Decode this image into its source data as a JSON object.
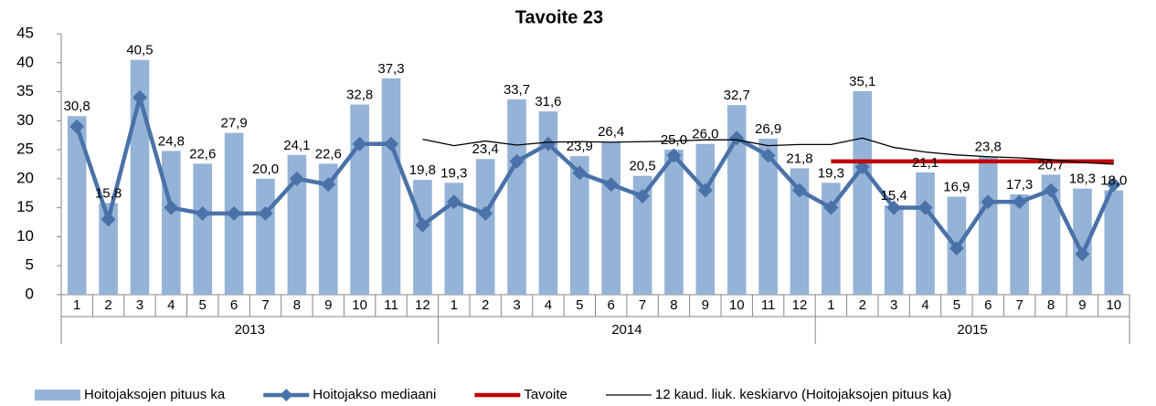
{
  "chart_data": {
    "type": "bar_line",
    "title": "Tavoite 23",
    "categories": [
      "1",
      "2",
      "3",
      "4",
      "5",
      "6",
      "7",
      "8",
      "9",
      "10",
      "11",
      "12",
      "1",
      "2",
      "3",
      "4",
      "5",
      "6",
      "7",
      "8",
      "9",
      "10",
      "11",
      "12",
      "1",
      "2",
      "3",
      "4",
      "5",
      "6",
      "7",
      "8",
      "9",
      "10"
    ],
    "groups": [
      "2013",
      "2014",
      "2015"
    ],
    "ylim": [
      0,
      45
    ],
    "yticks": [
      0,
      5,
      10,
      15,
      20,
      25,
      30,
      35,
      40,
      45
    ],
    "grid": false,
    "legend": "bottom",
    "series": [
      {
        "name": "Hoitojaksojen pituus ka",
        "kind": "bar",
        "color": "#95b3d7",
        "values": [
          30.8,
          15.8,
          40.5,
          24.8,
          22.6,
          27.9,
          20.0,
          24.1,
          22.6,
          32.8,
          37.3,
          19.8,
          19.3,
          23.4,
          33.7,
          31.6,
          23.9,
          26.4,
          20.5,
          25.0,
          26.0,
          32.7,
          26.9,
          21.8,
          19.3,
          35.1,
          15.4,
          21.1,
          16.9,
          23.8,
          17.3,
          20.7,
          18.3,
          18.0
        ],
        "value_labels": [
          "30,8",
          "15,8",
          "40,5",
          "24,8",
          "22,6",
          "27,9",
          "20,0",
          "24,1",
          "22,6",
          "32,8",
          "37,3",
          "19,8",
          "19,3",
          "23,4",
          "33,7",
          "31,6",
          "23,9",
          "26,4",
          "20,5",
          "25,0",
          "26,0",
          "32,7",
          "26,9",
          "21,8",
          "19,3",
          "35,1",
          "15,4",
          "21,1",
          "16,9",
          "23,8",
          "17,3",
          "20,7",
          "18,3",
          "18,0"
        ]
      },
      {
        "name": "Hoitojakso mediaani",
        "kind": "line-marker",
        "color": "#4a72a8",
        "values": [
          29,
          13,
          34,
          15,
          14,
          14,
          14,
          20,
          19,
          26,
          26,
          12,
          16,
          14,
          23,
          26,
          21,
          19,
          17,
          24,
          18,
          27,
          24,
          18,
          15,
          22,
          15,
          15,
          8,
          16,
          16,
          18,
          7,
          19
        ]
      },
      {
        "name": "Tavoite",
        "kind": "line-thick",
        "color": "#c00000",
        "values": [
          null,
          null,
          null,
          null,
          null,
          null,
          null,
          null,
          null,
          null,
          null,
          null,
          null,
          null,
          null,
          null,
          null,
          null,
          null,
          null,
          null,
          null,
          null,
          null,
          23,
          23,
          23,
          23,
          23,
          23,
          23,
          23,
          23,
          23
        ]
      },
      {
        "name": "12 kaud. liuk. keskiarvo (Hoitojaksojen pituus ka)",
        "kind": "line-thin",
        "color": "#000000",
        "values": [
          null,
          null,
          null,
          null,
          null,
          null,
          null,
          null,
          null,
          null,
          null,
          26.8,
          25.7,
          26.5,
          25.8,
          26.3,
          26.4,
          26.3,
          26.4,
          26.5,
          26.7,
          26.7,
          25.7,
          25.9,
          25.9,
          27.0,
          25.4,
          24.6,
          24.1,
          23.8,
          23.6,
          23.3,
          22.8,
          22.5
        ]
      }
    ]
  }
}
